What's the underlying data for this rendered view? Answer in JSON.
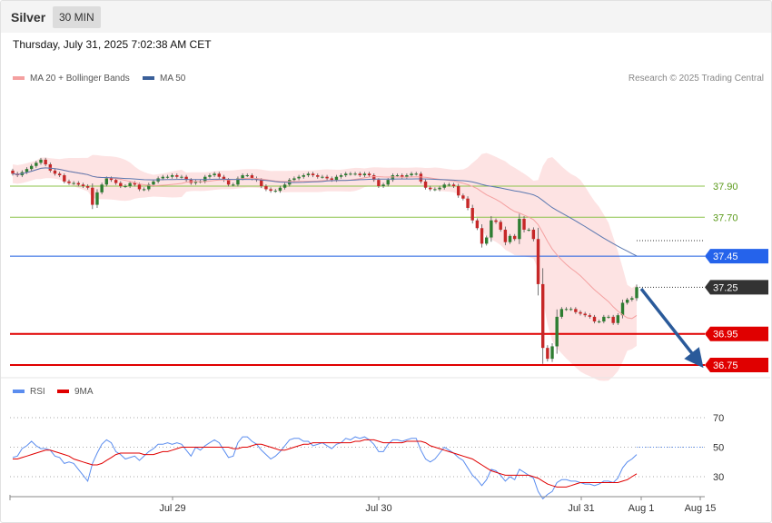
{
  "header": {
    "symbol": "Silver",
    "interval": "30 MIN",
    "datetime": "Thursday, July 31, 2025 7:02:38 AM CET"
  },
  "legend": {
    "ma20": "MA 20 + Bollinger Bands",
    "ma50": "MA 50",
    "copyright": "Research © 2025 Trading Central"
  },
  "rsi_legend": {
    "rsi": "RSI",
    "ma9": "9MA"
  },
  "colors": {
    "up": "#2e7d32",
    "down": "#c62828",
    "band_fill": "#fde3e3",
    "ma20": "#f4a0a0",
    "ma50": "#5b78b0",
    "support": "#e00000",
    "pivot": "#1f5fe0",
    "resistance": "#8bc34a",
    "arrow": "#2a5a9a",
    "rsi": "#5b8def",
    "rsi_ma": "#e00000"
  },
  "chart_data": [
    {
      "type": "candlestick",
      "title": "Silver",
      "interval": "30 MIN",
      "x_ticks": [
        "Jul 29",
        "Jul 30",
        "Jul 31",
        "Aug 1",
        "Aug 15"
      ],
      "ylim": [
        36.6,
        38.45
      ],
      "close": [
        37.98,
        37.97,
        37.99,
        38.01,
        38.03,
        38.05,
        38.07,
        38.04,
        38.0,
        37.98,
        37.97,
        37.93,
        37.92,
        37.92,
        37.91,
        37.9,
        37.89,
        37.78,
        37.86,
        37.91,
        37.95,
        37.94,
        37.92,
        37.9,
        37.9,
        37.92,
        37.91,
        37.88,
        37.88,
        37.91,
        37.93,
        37.95,
        37.96,
        37.96,
        37.97,
        37.96,
        37.96,
        37.94,
        37.92,
        37.93,
        37.93,
        37.96,
        37.97,
        37.98,
        37.96,
        37.94,
        37.91,
        37.91,
        37.95,
        37.97,
        37.97,
        37.95,
        37.94,
        37.9,
        37.88,
        37.87,
        37.87,
        37.89,
        37.91,
        37.94,
        37.95,
        37.96,
        37.97,
        37.98,
        37.97,
        37.96,
        37.96,
        37.95,
        37.94,
        37.96,
        37.97,
        37.98,
        37.98,
        37.98,
        37.97,
        37.98,
        37.97,
        37.94,
        37.9,
        37.91,
        37.94,
        37.97,
        37.97,
        37.96,
        37.97,
        37.98,
        37.98,
        37.93,
        37.89,
        37.88,
        37.88,
        37.89,
        37.91,
        37.91,
        37.9,
        37.84,
        37.82,
        37.76,
        37.68,
        37.63,
        37.53,
        37.57,
        37.68,
        37.67,
        37.62,
        37.54,
        37.58,
        37.56,
        37.69,
        37.62,
        37.62,
        37.56,
        37.27,
        36.86,
        36.79,
        36.87,
        37.06,
        37.11,
        37.11,
        37.11,
        37.09,
        37.08,
        37.07,
        37.06,
        37.03,
        37.03,
        37.06,
        37.06,
        37.02,
        37.07,
        37.15,
        37.17,
        37.18,
        37.25
      ],
      "resistance": [
        37.9,
        37.7
      ],
      "pivot": 37.45,
      "last_price": 37.25,
      "support": [
        36.95,
        36.75
      ],
      "levels_text": [
        "37.90",
        "37.70",
        "37.45",
        "37.25",
        "36.95",
        "36.75"
      ]
    },
    {
      "type": "line",
      "title": "RSI",
      "ylim": [
        15,
        85
      ],
      "y_ticks": [
        "70",
        "50",
        "30"
      ],
      "series": [
        {
          "name": "RSI",
          "values": [
            43,
            44,
            49,
            51,
            54,
            51,
            49,
            49,
            48,
            44,
            43,
            39,
            40,
            39,
            35,
            31,
            27,
            39,
            46,
            52,
            55,
            53,
            47,
            45,
            42,
            43,
            44,
            41,
            44,
            47,
            49,
            52,
            52,
            53,
            52,
            53,
            52,
            48,
            44,
            50,
            48,
            51,
            53,
            55,
            53,
            48,
            43,
            44,
            53,
            57,
            57,
            54,
            52,
            48,
            45,
            42,
            44,
            47,
            51,
            55,
            56,
            56,
            54,
            54,
            51,
            52,
            53,
            51,
            49,
            52,
            53,
            56,
            55,
            57,
            56,
            57,
            55,
            52,
            47,
            47,
            52,
            55,
            55,
            54,
            55,
            56,
            56,
            48,
            42,
            40,
            42,
            46,
            50,
            48,
            46,
            43,
            41,
            36,
            31,
            28,
            24,
            28,
            35,
            34,
            31,
            27,
            30,
            28,
            35,
            33,
            31,
            29,
            20,
            15,
            18,
            20,
            26,
            28,
            28,
            27,
            27,
            26,
            25,
            25,
            24,
            25,
            27,
            27,
            26,
            29,
            36,
            40,
            42,
            45
          ]
        },
        {
          "name": "9MA",
          "values": [
            42,
            42,
            43,
            44,
            45,
            46,
            47,
            48,
            48,
            47,
            46,
            45,
            44,
            42,
            41,
            40,
            39,
            38,
            38,
            39,
            41,
            43,
            45,
            46,
            46,
            46,
            46,
            46,
            45,
            45,
            45,
            46,
            47,
            47,
            48,
            49,
            50,
            50,
            50,
            50,
            50,
            50,
            50,
            50,
            50,
            50,
            50,
            49,
            49,
            50,
            50,
            51,
            52,
            52,
            51,
            50,
            49,
            48,
            48,
            49,
            50,
            51,
            52,
            52,
            53,
            53,
            53,
            53,
            53,
            53,
            53,
            53,
            53,
            54,
            54,
            55,
            55,
            55,
            54,
            53,
            53,
            53,
            53,
            53,
            54,
            54,
            54,
            54,
            53,
            51,
            50,
            49,
            48,
            47,
            46,
            45,
            44,
            43,
            42,
            40,
            38,
            36,
            34,
            33,
            32,
            31,
            31,
            31,
            31,
            31,
            31,
            30,
            29,
            27,
            25,
            24,
            23,
            23,
            23,
            24,
            25,
            26,
            26,
            26,
            26,
            26,
            26,
            26,
            26,
            26,
            27,
            28,
            30,
            32
          ]
        }
      ]
    }
  ]
}
